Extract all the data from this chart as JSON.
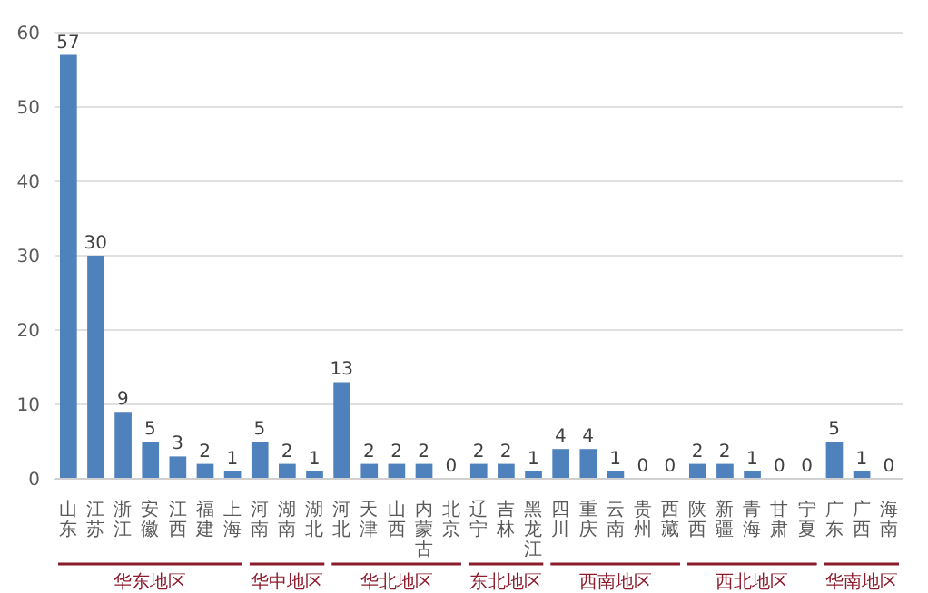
{
  "chart_data": {
    "type": "bar",
    "categories": [
      "山东",
      "江苏",
      "浙江",
      "安徽",
      "江西",
      "福建",
      "上海",
      "河南",
      "湖南",
      "湖北",
      "河北",
      "天津",
      "山西",
      "内蒙古",
      "北京",
      "辽宁",
      "吉林",
      "黑龙江",
      "四川",
      "重庆",
      "云南",
      "贵州",
      "西藏",
      "陕西",
      "新疆",
      "青海",
      "甘肃",
      "宁夏",
      "广东",
      "广西",
      "海南"
    ],
    "values": [
      57,
      30,
      9,
      5,
      3,
      2,
      1,
      5,
      2,
      1,
      13,
      2,
      2,
      2,
      0,
      2,
      2,
      1,
      4,
      4,
      1,
      0,
      0,
      2,
      2,
      1,
      0,
      0,
      5,
      1,
      0
    ],
    "color": "#4f81bd",
    "ylim": [
      0,
      60
    ],
    "yticks": [
      0,
      10,
      20,
      30,
      40,
      50,
      60
    ],
    "grid": "y",
    "data_labels": true,
    "annotations": [
      "华东地区",
      "华中地区",
      "华北地区",
      "东北地区",
      "西南地区",
      "西北地区",
      "华南地区"
    ]
  }
}
